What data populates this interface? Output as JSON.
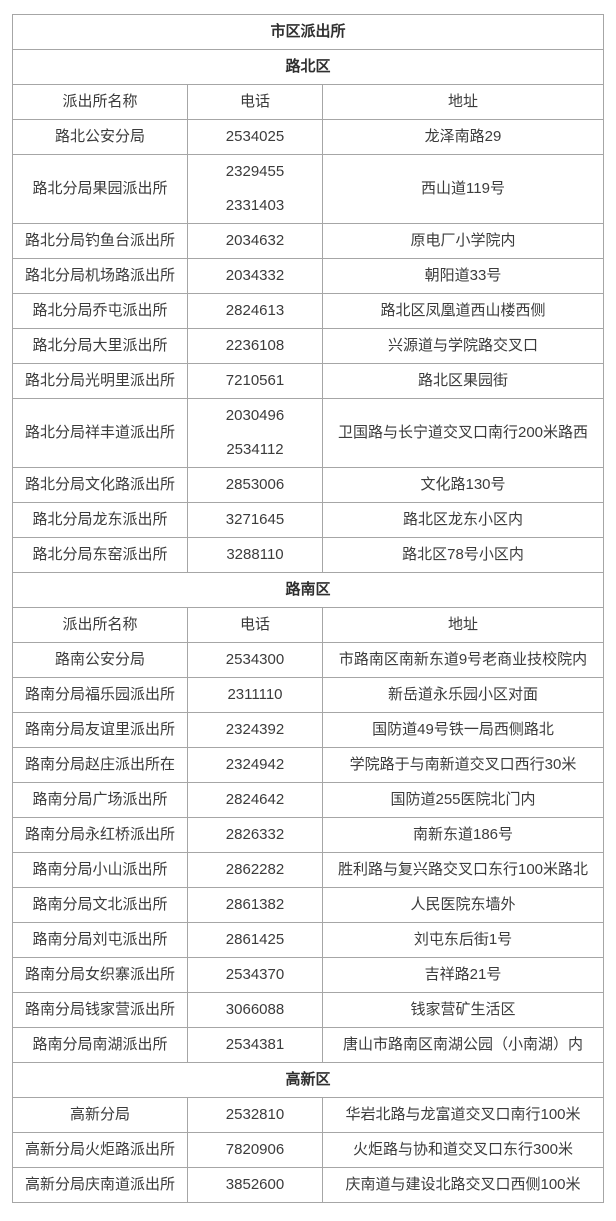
{
  "colors": {
    "border": "#a6a6a6",
    "text": "#3b3b3b",
    "background": "#ffffff"
  },
  "table": {
    "title": "市区派出所",
    "columns": [
      "派出所名称",
      "电话",
      "地址"
    ],
    "sections": [
      {
        "name": "路北区",
        "has_header": true,
        "rows": [
          {
            "name": "路北公安分局",
            "phones": [
              "2534025"
            ],
            "address": "龙泽南路29"
          },
          {
            "name": "路北分局果园派出所",
            "phones": [
              "2329455",
              "2331403"
            ],
            "address": "西山道119号"
          },
          {
            "name": "路北分局钓鱼台派出所",
            "phones": [
              "2034632"
            ],
            "address": "原电厂小学院内"
          },
          {
            "name": "路北分局机场路派出所",
            "phones": [
              "2034332"
            ],
            "address": "朝阳道33号"
          },
          {
            "name": "路北分局乔屯派出所",
            "phones": [
              "2824613"
            ],
            "address": "路北区凤凰道西山楼西侧"
          },
          {
            "name": "路北分局大里派出所",
            "phones": [
              "2236108"
            ],
            "address": "兴源道与学院路交叉口"
          },
          {
            "name": "路北分局光明里派出所",
            "phones": [
              "7210561"
            ],
            "address": "路北区果园街"
          },
          {
            "name": "路北分局祥丰道派出所",
            "phones": [
              "2030496",
              "2534112"
            ],
            "address": "卫国路与长宁道交叉口南行200米路西"
          },
          {
            "name": "路北分局文化路派出所",
            "phones": [
              "2853006"
            ],
            "address": "文化路130号"
          },
          {
            "name": "路北分局龙东派出所",
            "phones": [
              "3271645"
            ],
            "address": "路北区龙东小区内"
          },
          {
            "name": "路北分局东窑派出所",
            "phones": [
              "3288110"
            ],
            "address": "路北区78号小区内"
          }
        ]
      },
      {
        "name": "路南区",
        "has_header": true,
        "rows": [
          {
            "name": "路南公安分局",
            "phones": [
              "2534300"
            ],
            "address": "市路南区南新东道9号老商业技校院内"
          },
          {
            "name": "路南分局福乐园派出所",
            "phones": [
              "2311110"
            ],
            "address": "新岳道永乐园小区对面"
          },
          {
            "name": "路南分局友谊里派出所",
            "phones": [
              "2324392"
            ],
            "address": "国防道49号铁一局西侧路北"
          },
          {
            "name": "路南分局赵庄派出所在",
            "phones": [
              "2324942"
            ],
            "address": "学院路于与南新道交叉口西行30米"
          },
          {
            "name": "路南分局广场派出所",
            "phones": [
              "2824642"
            ],
            "address": "国防道255医院北门内"
          },
          {
            "name": "路南分局永红桥派出所",
            "phones": [
              "2826332"
            ],
            "address": "南新东道186号"
          },
          {
            "name": "路南分局小山派出所",
            "phones": [
              "2862282"
            ],
            "address": "胜利路与复兴路交叉口东行100米路北"
          },
          {
            "name": "路南分局文北派出所",
            "phones": [
              "2861382"
            ],
            "address": "人民医院东墙外"
          },
          {
            "name": "路南分局刘屯派出所",
            "phones": [
              "2861425"
            ],
            "address": "刘屯东后街1号"
          },
          {
            "name": "路南分局女织寨派出所",
            "phones": [
              "2534370"
            ],
            "address": "吉祥路21号"
          },
          {
            "name": "路南分局钱家营派出所",
            "phones": [
              "3066088"
            ],
            "address": "钱家营矿生活区"
          },
          {
            "name": "路南分局南湖派出所",
            "phones": [
              "2534381"
            ],
            "address": "唐山市路南区南湖公园（小南湖）内"
          }
        ]
      },
      {
        "name": "高新区",
        "has_header": false,
        "rows": [
          {
            "name": "高新分局",
            "phones": [
              "2532810"
            ],
            "address": "华岩北路与龙富道交叉口南行100米"
          },
          {
            "name": "高新分局火炬路派出所",
            "phones": [
              "7820906"
            ],
            "address": "火炬路与协和道交叉口东行300米"
          },
          {
            "name": "高新分局庆南道派出所",
            "phones": [
              "3852600"
            ],
            "address": "庆南道与建设北路交叉口西侧100米"
          }
        ]
      }
    ]
  }
}
